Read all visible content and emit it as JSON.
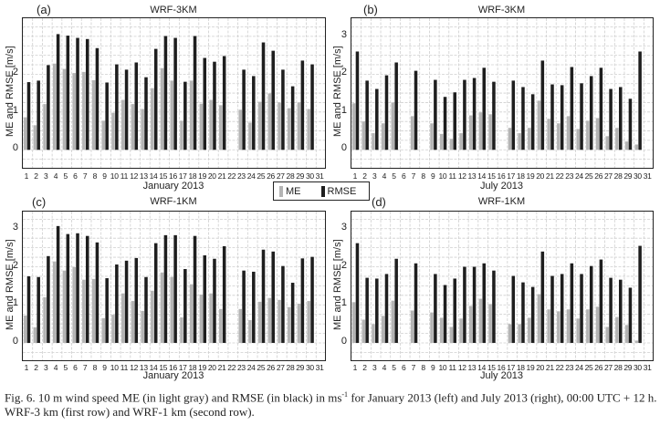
{
  "colors": {
    "me": "#b4b4b4",
    "rmse": "#1e1e1e",
    "grid": "#cfcfcf",
    "axis": "#222222"
  },
  "legend": {
    "me_label": "ME",
    "rmse_label": "RMSE"
  },
  "caption": {
    "prefix": "Fig. 6. 10 m wind speed ME (in light gray) and RMSE (in black) in ms",
    "sup": "-1",
    "suffix": " for January 2013 (left) and July 2013 (right), 00:00 UTC + 12 h. WRF-3 km (first row) and WRF-1 km (second row)."
  },
  "chart_data": [
    {
      "id": "a",
      "type": "bar",
      "panel_letter": "(a)",
      "title": "WRF-3KM",
      "xlabel": "January 2013",
      "ylabel": "ME and RMSE [m/s]",
      "ylim": [
        -0.5,
        3.48
      ],
      "yticks": [
        0,
        1,
        2
      ],
      "categories": [
        "1",
        "2",
        "3",
        "4",
        "5",
        "6",
        "7",
        "8",
        "9",
        "10",
        "11",
        "12",
        "13",
        "14",
        "15",
        "16",
        "17",
        "18",
        "19",
        "20",
        "21",
        "22",
        "23",
        "24",
        "25",
        "26",
        "27",
        "28",
        "29",
        "30",
        "31"
      ],
      "series": [
        {
          "name": "ME",
          "values": [
            0.86,
            0.65,
            1.21,
            2.28,
            2.14,
            2.03,
            2.06,
            1.84,
            0.77,
            0.98,
            1.32,
            1.21,
            1.08,
            1.63,
            2.16,
            1.83,
            0.77,
            1.83,
            1.22,
            1.32,
            1.18,
            null,
            1.06,
            0.72,
            1.27,
            1.49,
            1.25,
            1.1,
            1.25,
            1.08,
            null
          ]
        },
        {
          "name": "RMSE",
          "values": [
            1.79,
            1.83,
            2.24,
            3.06,
            3.02,
            2.96,
            2.93,
            2.69,
            1.78,
            2.26,
            2.12,
            2.31,
            1.92,
            2.67,
            3.01,
            2.96,
            1.8,
            3.01,
            2.43,
            2.33,
            2.48,
            null,
            2.12,
            1.95,
            2.84,
            2.62,
            2.12,
            1.68,
            2.36,
            2.26,
            null
          ]
        }
      ],
      "grid": true
    },
    {
      "id": "b",
      "type": "bar",
      "panel_letter": "(b)",
      "title": "WRF-3KM",
      "xlabel": "July 2013",
      "ylabel": "ME and RMSE [m/s]",
      "ylim": [
        -0.5,
        3.48
      ],
      "yticks": [
        0,
        1,
        2,
        3
      ],
      "categories": [
        "1",
        "2",
        "3",
        "4",
        "5",
        "6",
        "7",
        "8",
        "9",
        "10",
        "11",
        "12",
        "13",
        "14",
        "15",
        "16",
        "17",
        "18",
        "19",
        "20",
        "21",
        "22",
        "23",
        "24",
        "25",
        "26",
        "27",
        "28",
        "29",
        "30",
        "31"
      ],
      "series": [
        {
          "name": "ME",
          "values": [
            1.23,
            0.75,
            0.44,
            0.7,
            1.25,
            null,
            0.89,
            null,
            0.7,
            0.42,
            0.29,
            0.44,
            0.91,
            0.99,
            0.94,
            null,
            0.58,
            0.44,
            0.58,
            1.3,
            0.82,
            0.7,
            0.89,
            0.55,
            0.77,
            0.84,
            0.36,
            0.58,
            0.22,
            0.14,
            null
          ]
        },
        {
          "name": "RMSE",
          "values": [
            2.6,
            1.83,
            1.61,
            1.97,
            2.31,
            null,
            2.09,
            null,
            1.85,
            1.4,
            1.52,
            1.85,
            1.9,
            2.17,
            1.8,
            null,
            1.83,
            1.66,
            1.47,
            2.36,
            1.73,
            1.71,
            2.19,
            1.76,
            1.95,
            2.17,
            1.61,
            1.66,
            1.35,
            2.6,
            null
          ]
        }
      ],
      "grid": true
    },
    {
      "id": "c",
      "type": "bar",
      "panel_letter": "(c)",
      "title": "WRF-1KM",
      "xlabel": "January 2013",
      "ylabel": "ME and RMSE [m/s]",
      "ylim": [
        -0.48,
        3.45
      ],
      "yticks": [
        0,
        1,
        2,
        3
      ],
      "categories": [
        "1",
        "2",
        "3",
        "4",
        "5",
        "6",
        "7",
        "8",
        "9",
        "10",
        "11",
        "12",
        "13",
        "14",
        "15",
        "16",
        "17",
        "18",
        "19",
        "20",
        "21",
        "22",
        "23",
        "24",
        "25",
        "26",
        "27",
        "28",
        "29",
        "30",
        "31"
      ],
      "series": [
        {
          "name": "ME",
          "values": [
            0.72,
            0.41,
            1.2,
            2.14,
            1.9,
            1.99,
            1.66,
            1.68,
            0.65,
            0.74,
            1.3,
            1.1,
            0.84,
            1.37,
            1.85,
            1.73,
            0.67,
            1.54,
            1.27,
            1.3,
            0.89,
            null,
            0.89,
            0.6,
            1.08,
            1.18,
            1.13,
            0.94,
            1.03,
            1.1,
            null
          ]
        },
        {
          "name": "RMSE",
          "values": [
            1.75,
            1.73,
            2.28,
            3.07,
            2.86,
            2.88,
            2.81,
            2.64,
            1.7,
            2.06,
            2.16,
            2.23,
            1.73,
            2.62,
            2.83,
            2.83,
            1.94,
            2.81,
            2.3,
            2.21,
            2.54,
            null,
            1.9,
            1.87,
            2.45,
            2.4,
            2.02,
            1.58,
            2.22,
            2.26,
            null
          ]
        }
      ],
      "grid": true
    },
    {
      "id": "d",
      "type": "bar",
      "panel_letter": "(d)",
      "title": "WRF-1KM",
      "xlabel": "July 2013",
      "ylabel": "ME and RMSE [m/s]",
      "ylim": [
        -0.48,
        3.45
      ],
      "yticks": [
        0,
        1,
        2,
        3
      ],
      "categories": [
        "1",
        "2",
        "3",
        "4",
        "5",
        "6",
        "7",
        "8",
        "9",
        "10",
        "11",
        "12",
        "13",
        "14",
        "15",
        "16",
        "17",
        "18",
        "19",
        "20",
        "21",
        "22",
        "23",
        "24",
        "25",
        "26",
        "27",
        "28",
        "29",
        "30",
        "31"
      ],
      "series": [
        {
          "name": "ME",
          "values": [
            1.07,
            0.61,
            0.49,
            0.71,
            1.11,
            null,
            0.85,
            null,
            0.8,
            0.66,
            0.42,
            0.64,
            0.97,
            1.16,
            1.02,
            null,
            0.49,
            0.49,
            0.66,
            1.28,
            0.88,
            0.83,
            0.88,
            0.64,
            0.88,
            0.95,
            0.42,
            0.68,
            0.47,
            0.06,
            null
          ]
        },
        {
          "name": "RMSE",
          "values": [
            2.62,
            1.71,
            1.69,
            1.81,
            2.21,
            null,
            2.09,
            null,
            1.81,
            1.52,
            1.69,
            2.0,
            2.0,
            2.09,
            1.9,
            null,
            1.76,
            1.59,
            1.47,
            2.4,
            1.76,
            1.81,
            2.09,
            1.81,
            2.02,
            2.19,
            1.71,
            1.66,
            1.45,
            2.55,
            null
          ]
        }
      ],
      "grid": true
    }
  ]
}
